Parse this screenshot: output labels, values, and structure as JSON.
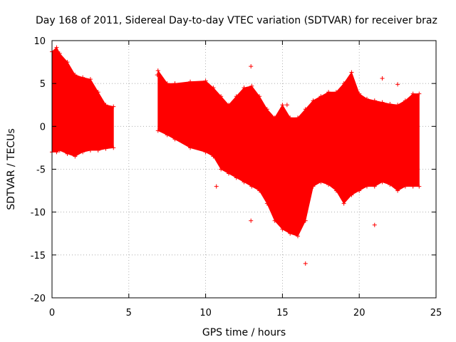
{
  "chart_data": {
    "type": "scatter",
    "title": "Day 168 of 2011, Sidereal Day-to-day VTEC variation (SDTVAR) for receiver braz",
    "xlabel": "GPS time / hours",
    "ylabel": "SDTVAR / TECUs",
    "xlim": [
      0,
      25
    ],
    "ylim": [
      -20,
      10
    ],
    "xticks": [
      0,
      5,
      10,
      15,
      20,
      25
    ],
    "yticks": [
      -20,
      -15,
      -10,
      -5,
      0,
      5,
      10
    ],
    "grid": true,
    "legend": "none",
    "series": [
      {
        "name": "SDTVAR",
        "color": "#ff0000",
        "marker": "+",
        "envelope": {
          "x": [
            0.0,
            0.3,
            0.5,
            1.0,
            1.5,
            2.0,
            2.5,
            3.0,
            3.5,
            4.0
          ],
          "upper": [
            8.7,
            9.2,
            8.5,
            7.5,
            6.0,
            5.7,
            5.5,
            4.0,
            2.5,
            2.3
          ],
          "lower": [
            -3.0,
            -3.0,
            -2.8,
            -3.2,
            -3.5,
            -3.0,
            -2.8,
            -2.8,
            -2.6,
            -2.5
          ]
        },
        "envelope2": {
          "x": [
            6.9,
            7.5,
            8.0,
            9.0,
            10.0,
            10.5,
            11.0,
            11.5,
            12.0,
            12.5,
            13.0,
            13.5,
            14.0,
            14.5,
            15.0,
            15.5,
            16.0,
            16.5,
            17.0,
            17.5,
            18.0,
            18.5,
            19.0,
            19.5,
            20.0,
            20.5,
            21.0,
            21.5,
            22.0,
            22.5,
            23.0,
            23.5,
            23.9
          ],
          "upper": [
            6.5,
            5.0,
            5.0,
            5.2,
            5.3,
            4.5,
            3.5,
            2.5,
            3.5,
            4.5,
            4.7,
            3.5,
            2.0,
            1.0,
            2.5,
            1.0,
            1.0,
            2.0,
            3.0,
            3.5,
            4.0,
            4.0,
            5.0,
            6.3,
            3.8,
            3.2,
            3.0,
            2.8,
            2.6,
            2.5,
            3.0,
            3.8,
            3.8
          ],
          "lower": [
            -0.5,
            -1.0,
            -1.5,
            -2.5,
            -3.0,
            -3.5,
            -5.0,
            -5.5,
            -6.0,
            -6.5,
            -7.0,
            -7.5,
            -9.0,
            -11.0,
            -12.0,
            -12.5,
            -12.8,
            -11.0,
            -7.0,
            -6.5,
            -6.8,
            -7.5,
            -9.0,
            -8.0,
            -7.5,
            -7.0,
            -7.0,
            -6.5,
            -6.8,
            -7.5,
            -7.0,
            -7.0,
            -7.0
          ]
        },
        "outliers": [
          {
            "x": 6.85,
            "y": 6.0
          },
          {
            "x": 7.05,
            "y": 0.2
          },
          {
            "x": 10.7,
            "y": -7.0
          },
          {
            "x": 12.95,
            "y": 7.0
          },
          {
            "x": 12.95,
            "y": -11.0
          },
          {
            "x": 15.3,
            "y": 2.5
          },
          {
            "x": 16.5,
            "y": -16.0
          },
          {
            "x": 21.0,
            "y": -11.5
          },
          {
            "x": 21.5,
            "y": 5.6
          },
          {
            "x": 22.5,
            "y": 4.9
          }
        ]
      }
    ]
  }
}
